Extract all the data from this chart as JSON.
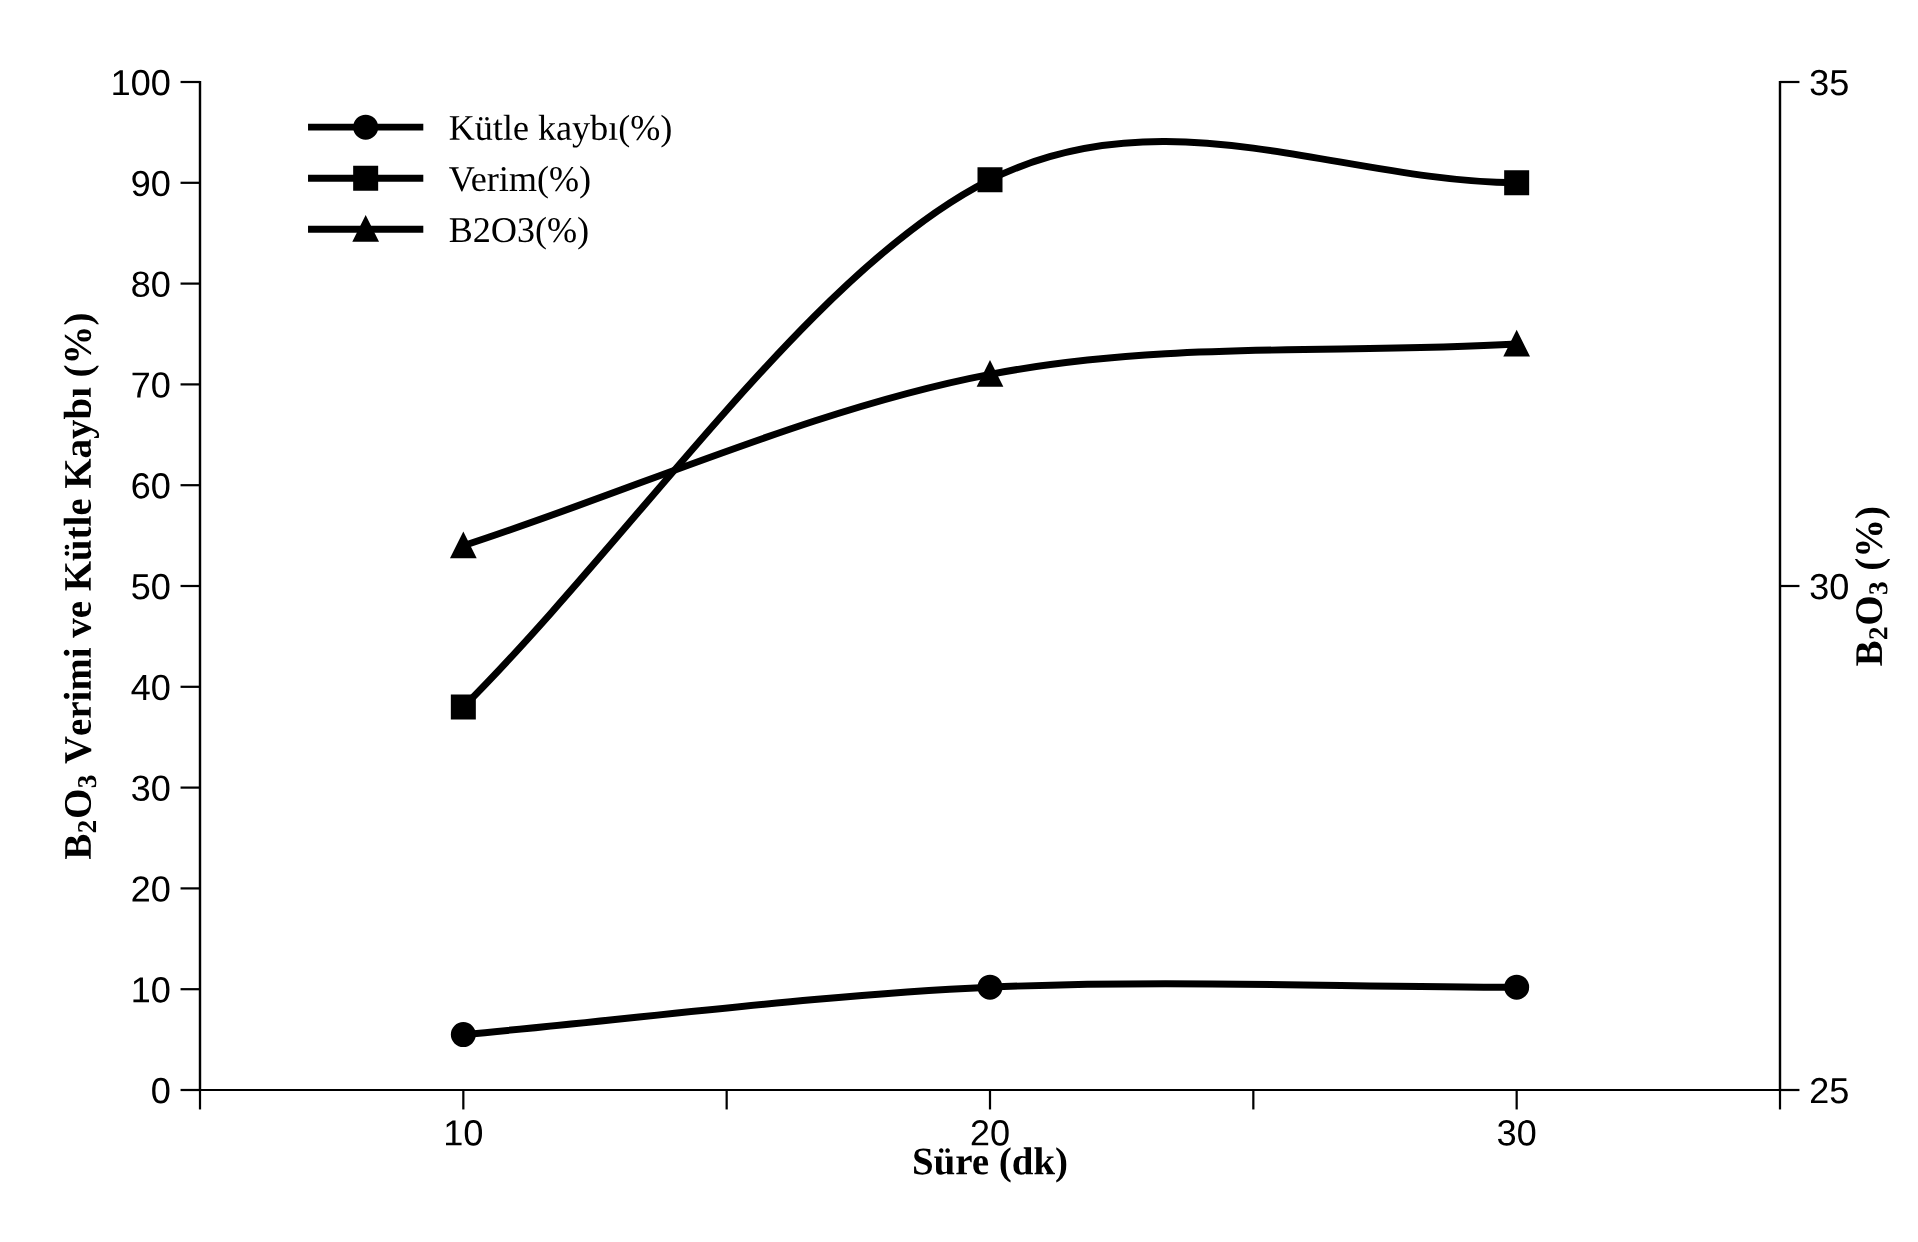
{
  "chart_data": {
    "type": "line",
    "xlabel": "Süre (dk)",
    "ylabel": "B$_{2}$O$_{3}$ Verimi ve Kütle Kaybı (%)",
    "y2label": "B$_{2}$O$_{3}$ (%)",
    "x": [
      10,
      20,
      30
    ],
    "series": [
      {
        "name": "Kütle kaybı(%)",
        "color": "#000000",
        "marker": "circle",
        "values": [
          5.5,
          10.2,
          10.2
        ]
      },
      {
        "name": "Verim(%)",
        "color": "#000000",
        "marker": "square",
        "values": [
          38,
          90.3,
          90
        ]
      },
      {
        "name": "B2O3(%)",
        "color": "#000000",
        "marker": "triangle",
        "axis": "y2",
        "values": [
          30.4,
          32.1,
          32.4
        ]
      }
    ],
    "xlim": [
      5,
      35
    ],
    "xticks": [
      {
        "value": 5,
        "label": null
      },
      10,
      {
        "value": 15,
        "label": null
      },
      20,
      {
        "value": 25,
        "label": null
      },
      30,
      {
        "value": 35,
        "label": null
      }
    ],
    "ylim": [
      0,
      100
    ],
    "yticks": [
      0,
      10,
      20,
      30,
      40,
      50,
      60,
      70,
      80,
      90,
      100
    ],
    "y2lim": [
      25,
      35
    ],
    "y2ticks": [
      25,
      30,
      35
    ],
    "legend": "top left",
    "grid": false,
    "line_style": "solid"
  }
}
